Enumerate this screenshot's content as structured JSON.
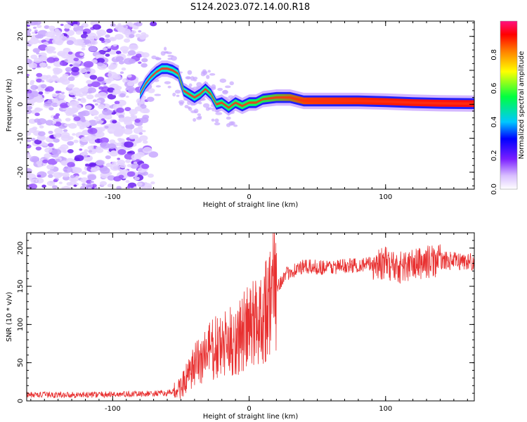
{
  "title": "S124.2023.072.14.00.R18",
  "chart_data": [
    {
      "type": "heatmap",
      "xlabel": "Height of straight line (km)",
      "ylabel": "Frequency (Hz)",
      "xlim": [
        -163,
        165
      ],
      "ylim": [
        -25,
        24.5
      ],
      "xticks": [
        -100,
        0,
        100
      ],
      "yticks": [
        -20,
        -10,
        0,
        10,
        20
      ],
      "ridge": {
        "x": [
          -80,
          -76,
          -72,
          -68,
          -64,
          -60,
          -56,
          -52,
          -48,
          -44,
          -40,
          -36,
          -32,
          -28,
          -24,
          -20,
          -15,
          -10,
          -5,
          0,
          5,
          10,
          20,
          30,
          40,
          60,
          80,
          100,
          120,
          140,
          165
        ],
        "y": [
          3,
          6,
          8,
          9.5,
          10.5,
          10.5,
          10,
          9,
          4,
          3,
          2,
          3,
          4.5,
          3,
          0,
          0.5,
          -1,
          0.5,
          -0.5,
          0.5,
          0.5,
          1.5,
          2,
          2,
          1,
          1,
          1,
          0.8,
          0.5,
          0.3,
          0.2
        ]
      },
      "colorbar": {
        "label": "Normalized spectral amplitude",
        "range": [
          0,
          1
        ],
        "ticks": [
          "0.0",
          "0.2",
          "0.4",
          "0.6",
          "0.8"
        ]
      }
    },
    {
      "type": "line",
      "color": "#e83030",
      "xlabel": "Height of straight line (km)",
      "ylabel": "SNR (10 * v/v)",
      "xlim": [
        -163,
        165
      ],
      "ylim": [
        0,
        220
      ],
      "xticks": [
        -100,
        0,
        100
      ],
      "yticks": [
        0,
        50,
        100,
        150,
        200
      ],
      "trend": {
        "x": [
          -163,
          -120,
          -80,
          -60,
          -52,
          -45,
          -38,
          -30,
          -20,
          -10,
          0,
          10,
          20,
          30,
          40,
          60,
          80,
          100,
          110,
          120,
          130,
          140,
          150,
          165
        ],
        "y": [
          8,
          8,
          9,
          10,
          15,
          30,
          50,
          65,
          70,
          80,
          95,
          115,
          150,
          170,
          175,
          175,
          178,
          180,
          175,
          178,
          182,
          184,
          183,
          182
        ]
      }
    }
  ]
}
